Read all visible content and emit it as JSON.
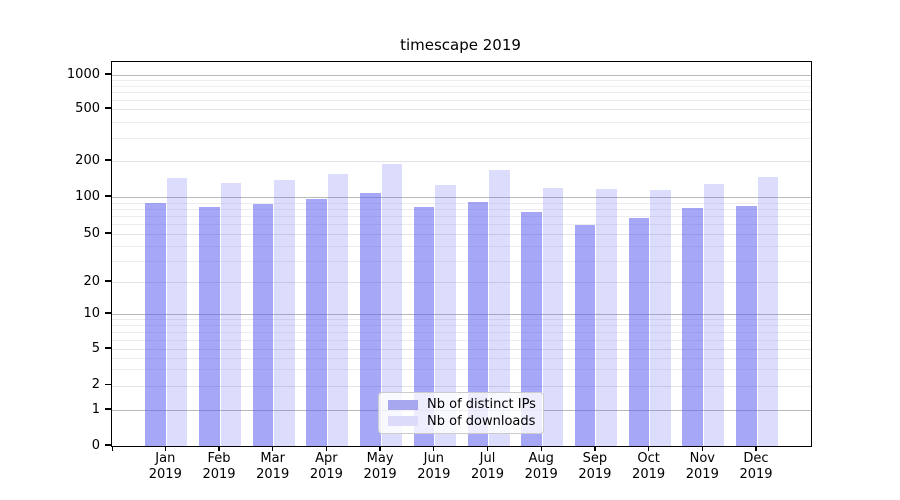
{
  "title": "timescape 2019",
  "chart_data": {
    "type": "bar",
    "title": "timescape 2019",
    "categories": [
      "Jan",
      "Feb",
      "Mar",
      "Apr",
      "May",
      "Jun",
      "Jul",
      "Aug",
      "Sep",
      "Oct",
      "Nov",
      "Dec"
    ],
    "x_year_line": "2019",
    "series": [
      {
        "name": "Nb of distinct IPs",
        "values": [
          89,
          83,
          87,
          97,
          107,
          83,
          91,
          75,
          59,
          67,
          81,
          84
        ]
      },
      {
        "name": "Nb of downloads",
        "values": [
          145,
          131,
          138,
          157,
          187,
          127,
          168,
          118,
          117,
          115,
          129,
          148
        ]
      }
    ],
    "yscale": "symlog",
    "yticks": [
      0,
      1,
      2,
      5,
      10,
      20,
      50,
      100,
      200,
      500,
      1000
    ],
    "ylim": [
      0,
      1100
    ],
    "grid": "horizontal, log major + minor",
    "legend_position": "lower center",
    "colors": {
      "distinct_ips_bar": "rgba(95,95,240,0.55)",
      "downloads_bar": "rgba(95,95,240,0.22)",
      "distinct_ips_patch": "#a7a7f0",
      "downloads_patch": "#dcdcfa",
      "grid_major": "#b9b9b9",
      "grid_minor": "#ededf0"
    }
  }
}
